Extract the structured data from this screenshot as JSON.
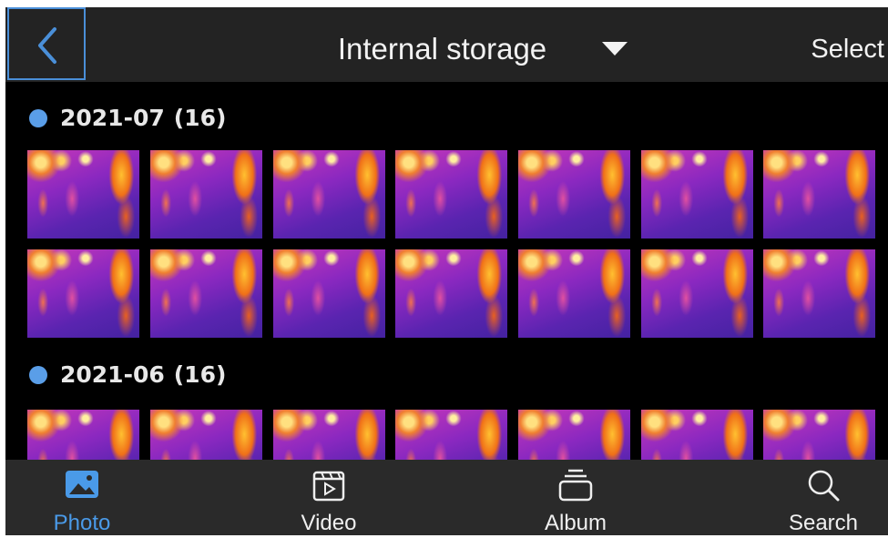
{
  "header": {
    "title": "Internal storage",
    "action": "Select"
  },
  "groups": [
    {
      "label": "2021-07",
      "count": "(16)"
    },
    {
      "label": "2021-06",
      "count": "(16)"
    }
  ],
  "nav": [
    {
      "label": "Photo"
    },
    {
      "label": "Video"
    },
    {
      "label": "Album"
    },
    {
      "label": "Search"
    }
  ]
}
